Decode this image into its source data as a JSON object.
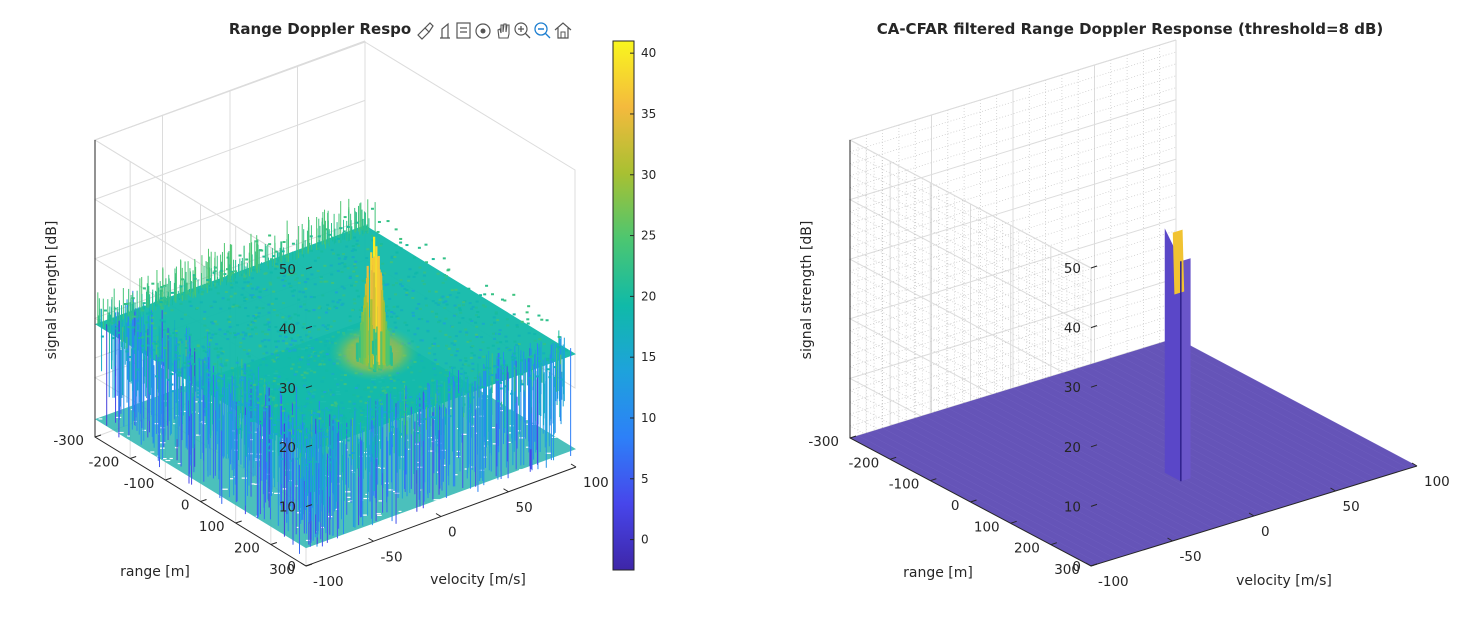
{
  "toolbar": {
    "icons": [
      "brush-icon",
      "data-tips-icon",
      "insert-legend-icon",
      "rotate-3d-icon",
      "pan-hand-icon",
      "zoom-in-icon",
      "zoom-out-icon",
      "home-icon"
    ]
  },
  "chart_data": [
    {
      "type": "surface",
      "title": "Range Doppler Respo",
      "xlabel": "velocity [m/s]",
      "ylabel": "range [m]",
      "zlabel": "signal strength [dB]",
      "xlim": [
        -100,
        100
      ],
      "ylim": [
        -300,
        300
      ],
      "zlim": [
        0,
        50
      ],
      "x_ticks": [
        "-100",
        "-50",
        "0",
        "50",
        "100"
      ],
      "y_ticks": [
        "-300",
        "-200",
        "-100",
        "0",
        "100",
        "200",
        "300"
      ],
      "z_ticks": [
        "0",
        "10",
        "20",
        "30",
        "40",
        "50"
      ],
      "noise_floor_db": 19,
      "noise_range_db": [
        3,
        24
      ],
      "peak": {
        "velocity": 0,
        "range": 110,
        "value_db": 41
      },
      "grid": true,
      "colorbar": {
        "ticks": [
          "0",
          "5",
          "10",
          "15",
          "20",
          "25",
          "30",
          "35",
          "40"
        ],
        "range": [
          -2.5,
          41
        ],
        "colors": [
          "#3e26a8",
          "#4746eb",
          "#2d80f8",
          "#1ea2dc",
          "#10baa8",
          "#4cc671",
          "#a8c032",
          "#f4ba3d",
          "#f9f61e"
        ]
      }
    },
    {
      "type": "surface",
      "title": "CA-CFAR filtered Range Doppler Response (threshold=8 dB)",
      "xlabel": "velocity [m/s]",
      "ylabel": "range [m]",
      "zlabel": "signal strength [dB]",
      "xlim": [
        -100,
        100
      ],
      "ylim": [
        -300,
        300
      ],
      "zlim": [
        0,
        50
      ],
      "x_ticks": [
        "-100",
        "-50",
        "0",
        "50",
        "100"
      ],
      "y_ticks": [
        "-300",
        "-200",
        "-100",
        "0",
        "100",
        "200",
        "300"
      ],
      "z_ticks": [
        "0",
        "10",
        "20",
        "30",
        "40",
        "50"
      ],
      "floor_value_db": 0,
      "peak": {
        "velocity": 0,
        "range": 110,
        "value_db": 41
      },
      "grid": true,
      "minor_grid": true,
      "colors": {
        "floor": "#6554b8",
        "peak_top": "#f1c332"
      }
    }
  ]
}
